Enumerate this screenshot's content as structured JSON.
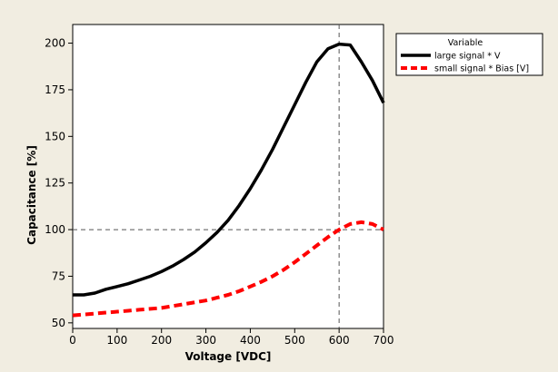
{
  "chart_data": {
    "type": "line",
    "xlabel": "Voltage [VDC]",
    "ylabel": "Capacitance [%]",
    "xlim": [
      0,
      700
    ],
    "ylim": [
      47,
      210
    ],
    "x_ticks": [
      "0",
      "100",
      "200",
      "300",
      "400",
      "500",
      "600",
      "700"
    ],
    "y_ticks": [
      "50",
      "75",
      "100",
      "125",
      "150",
      "175",
      "200"
    ],
    "grid": false,
    "legend_position": "top-right outside plot",
    "legend_title": "Variable",
    "reference_lines": {
      "x": 600,
      "y": 100
    },
    "series": [
      {
        "name": "large signal * V",
        "color": "#000000",
        "style": "solid",
        "x": [
          0,
          25,
          50,
          75,
          100,
          125,
          150,
          175,
          200,
          225,
          250,
          275,
          300,
          325,
          350,
          375,
          400,
          425,
          450,
          475,
          500,
          525,
          550,
          575,
          600,
          625,
          650,
          675,
          700
        ],
        "y": [
          65,
          65,
          66,
          68,
          69.5,
          71,
          73,
          75,
          77.5,
          80.5,
          84,
          88,
          93,
          98.5,
          105,
          113,
          122,
          132,
          143,
          155,
          167,
          179,
          190,
          197,
          199.5,
          199,
          190,
          180,
          168
        ]
      },
      {
        "name": "small signal * Bias [V]",
        "color": "#ff0000",
        "style": "dashed",
        "x": [
          0,
          25,
          50,
          75,
          100,
          125,
          150,
          175,
          200,
          225,
          250,
          275,
          300,
          325,
          350,
          375,
          400,
          425,
          450,
          475,
          500,
          525,
          550,
          575,
          600,
          625,
          650,
          675,
          700
        ],
        "y": [
          54,
          54.5,
          55,
          55.5,
          56,
          56.5,
          57,
          57.5,
          58,
          59,
          60,
          61,
          62,
          63.5,
          65,
          67,
          69.5,
          72,
          75,
          78.5,
          82.5,
          87,
          91.5,
          96,
          100,
          103,
          104,
          103,
          100
        ]
      }
    ]
  }
}
